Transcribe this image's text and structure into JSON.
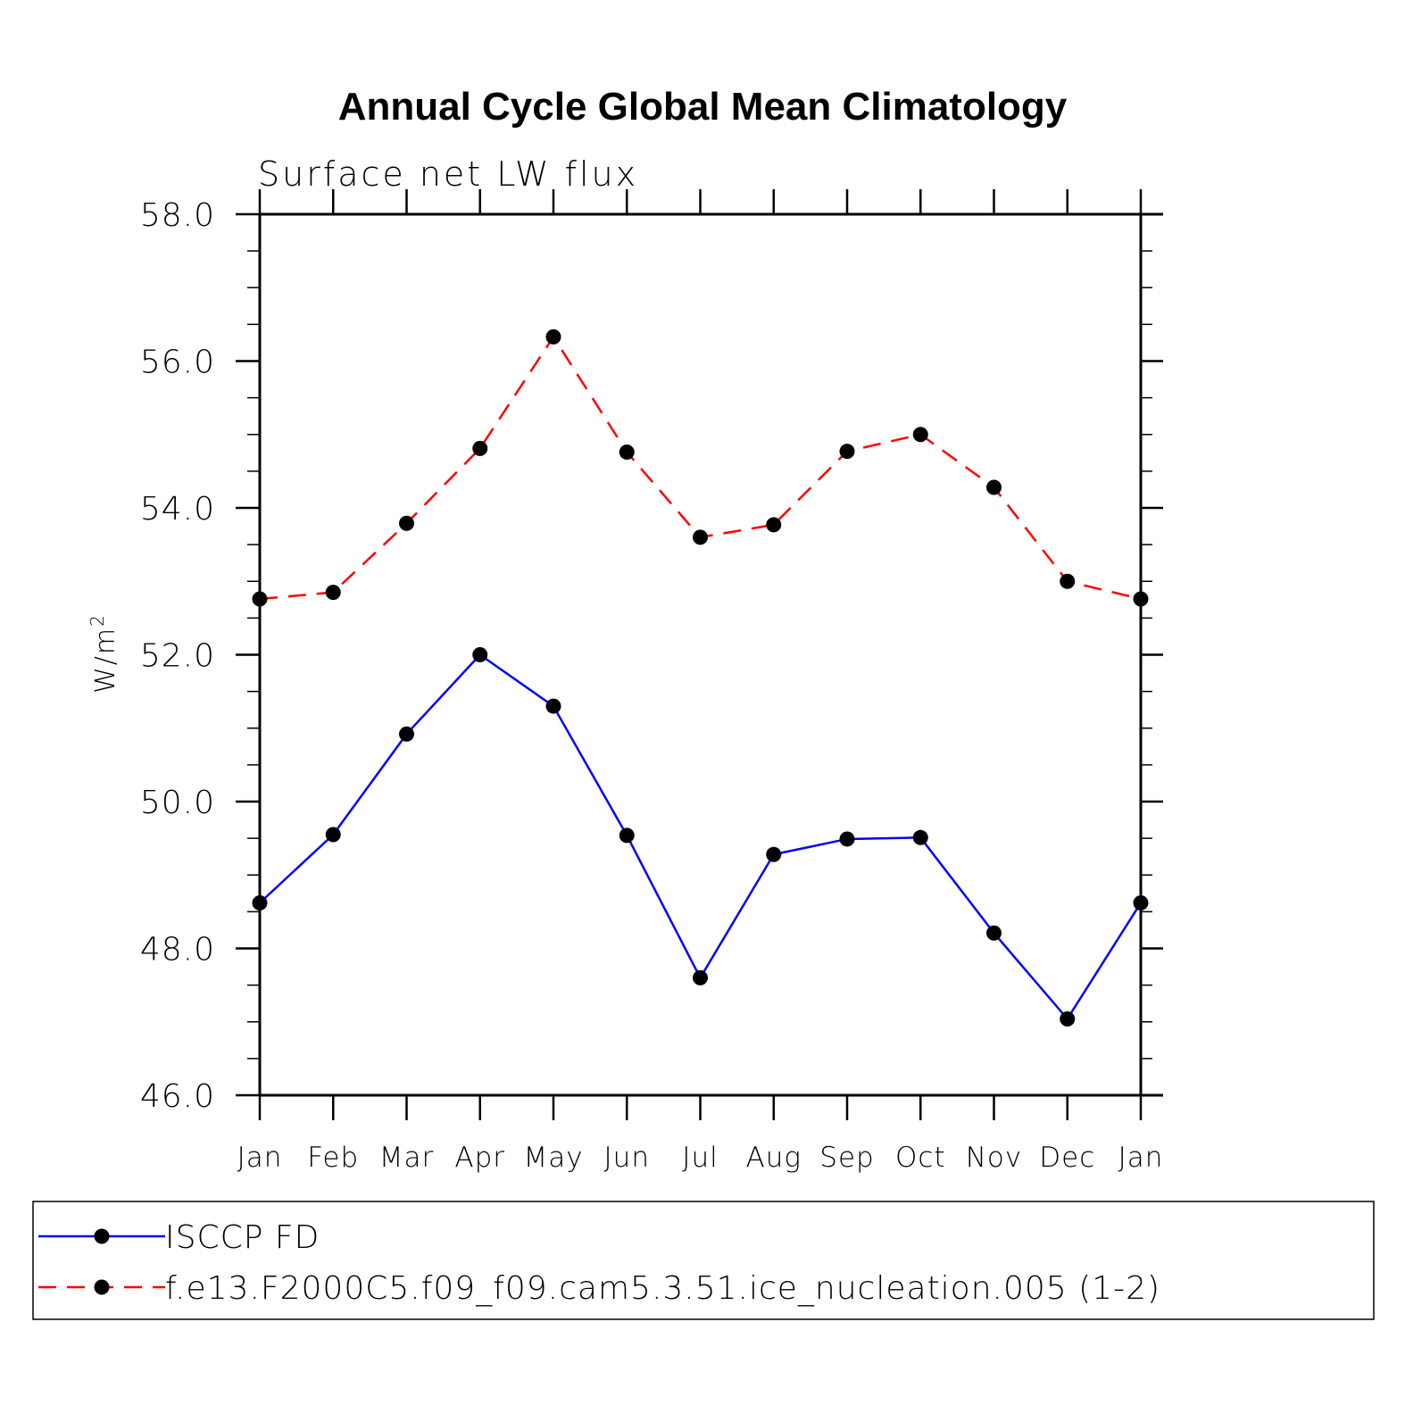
{
  "chart_data": {
    "type": "line",
    "title": "Annual Cycle Global Mean Climatology",
    "subtitle": "Surface net LW flux",
    "ylabel": "W/m",
    "ylabel_superscript": "2",
    "ylim": [
      46.0,
      58.0
    ],
    "yticks": [
      "46.0",
      "48.0",
      "50.0",
      "52.0",
      "54.0",
      "56.0",
      "58.0"
    ],
    "categories": [
      "Jan",
      "Feb",
      "Mar",
      "Apr",
      "May",
      "Jun",
      "Jul",
      "Aug",
      "Sep",
      "Oct",
      "Nov",
      "Dec",
      "Jan"
    ],
    "series": [
      {
        "name": "ISCCP FD",
        "color": "#0000ff",
        "dash": "solid",
        "values": [
          48.62,
          49.55,
          50.92,
          52.0,
          51.3,
          49.54,
          47.6,
          49.28,
          49.49,
          49.51,
          48.21,
          47.04,
          48.62
        ]
      },
      {
        "name": "f.e13.F2000C5.f09_f09.cam5.3.51.ice_nucleation.005 (1-2)",
        "color": "#ff0000",
        "dash": "dashed",
        "values": [
          52.76,
          52.85,
          53.79,
          54.81,
          56.33,
          54.76,
          53.6,
          53.77,
          54.77,
          55.0,
          54.28,
          53.0,
          52.76
        ]
      }
    ]
  }
}
